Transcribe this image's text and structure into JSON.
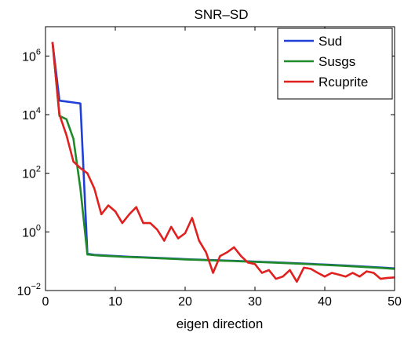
{
  "chart_data": {
    "type": "line",
    "title": "SNR–SD",
    "xlabel": "eigen direction",
    "ylabel": "",
    "xlim": [
      0,
      50
    ],
    "ylim": [
      0.01,
      10000000
    ],
    "yscale": "log",
    "grid": false,
    "legend_position": "top-right",
    "x_ticks": [
      {
        "value": 0,
        "label": "0"
      },
      {
        "value": 10,
        "label": "10"
      },
      {
        "value": 20,
        "label": "20"
      },
      {
        "value": 30,
        "label": "30"
      },
      {
        "value": 40,
        "label": "40"
      },
      {
        "value": 50,
        "label": "50"
      }
    ],
    "y_ticks": [
      {
        "value": 0.01,
        "base": "10",
        "exp": "−2"
      },
      {
        "value": 1,
        "base": "10",
        "exp": "0"
      },
      {
        "value": 100,
        "base": "10",
        "exp": "2"
      },
      {
        "value": 10000,
        "base": "10",
        "exp": "4"
      },
      {
        "value": 1000000,
        "base": "10",
        "exp": "6"
      }
    ],
    "x": [
      1,
      2,
      3,
      4,
      5,
      6,
      7,
      8,
      9,
      10,
      11,
      12,
      13,
      14,
      15,
      16,
      17,
      18,
      19,
      20,
      21,
      22,
      23,
      24,
      25,
      26,
      27,
      28,
      29,
      30,
      31,
      32,
      33,
      34,
      35,
      36,
      37,
      38,
      39,
      40,
      41,
      42,
      43,
      44,
      45,
      46,
      47,
      48,
      49,
      50
    ],
    "series": [
      {
        "name": "Sud",
        "color": "#1f3fd8",
        "values": [
          3000000,
          30000,
          28000,
          26000,
          24000,
          0.18,
          0.165,
          0.16,
          0.155,
          0.15,
          0.145,
          0.142,
          0.139,
          0.136,
          0.133,
          0.13,
          0.127,
          0.124,
          0.121,
          0.118,
          0.115,
          0.113,
          0.111,
          0.109,
          0.107,
          0.105,
          0.103,
          0.101,
          0.099,
          0.097,
          0.095,
          0.093,
          0.091,
          0.089,
          0.087,
          0.085,
          0.083,
          0.081,
          0.079,
          0.077,
          0.075,
          0.073,
          0.071,
          0.069,
          0.067,
          0.065,
          0.063,
          0.061,
          0.059,
          0.057
        ]
      },
      {
        "name": "Susgs",
        "color": "#1f8a2a",
        "values": [
          3000000,
          9000,
          7000,
          1500,
          30,
          0.17,
          0.16,
          0.155,
          0.15,
          0.146,
          0.142,
          0.139,
          0.136,
          0.133,
          0.13,
          0.127,
          0.124,
          0.121,
          0.118,
          0.115,
          0.113,
          0.111,
          0.109,
          0.107,
          0.105,
          0.103,
          0.101,
          0.099,
          0.097,
          0.095,
          0.093,
          0.091,
          0.089,
          0.087,
          0.085,
          0.083,
          0.081,
          0.079,
          0.077,
          0.075,
          0.073,
          0.071,
          0.069,
          0.067,
          0.065,
          0.063,
          0.061,
          0.059,
          0.057,
          0.055
        ]
      },
      {
        "name": "Rcuprite",
        "color": "#e0201f",
        "values": [
          3000000,
          10000,
          2000,
          250,
          150,
          100,
          30,
          4,
          8,
          5,
          2,
          4,
          7,
          2,
          2,
          1.2,
          0.5,
          1.5,
          0.6,
          0.9,
          3,
          0.5,
          0.2,
          0.04,
          0.15,
          0.2,
          0.3,
          0.15,
          0.09,
          0.08,
          0.04,
          0.05,
          0.025,
          0.03,
          0.05,
          0.02,
          0.06,
          0.055,
          0.04,
          0.03,
          0.04,
          0.035,
          0.03,
          0.04,
          0.03,
          0.045,
          0.04,
          0.025,
          0.027,
          0.028
        ]
      }
    ]
  }
}
